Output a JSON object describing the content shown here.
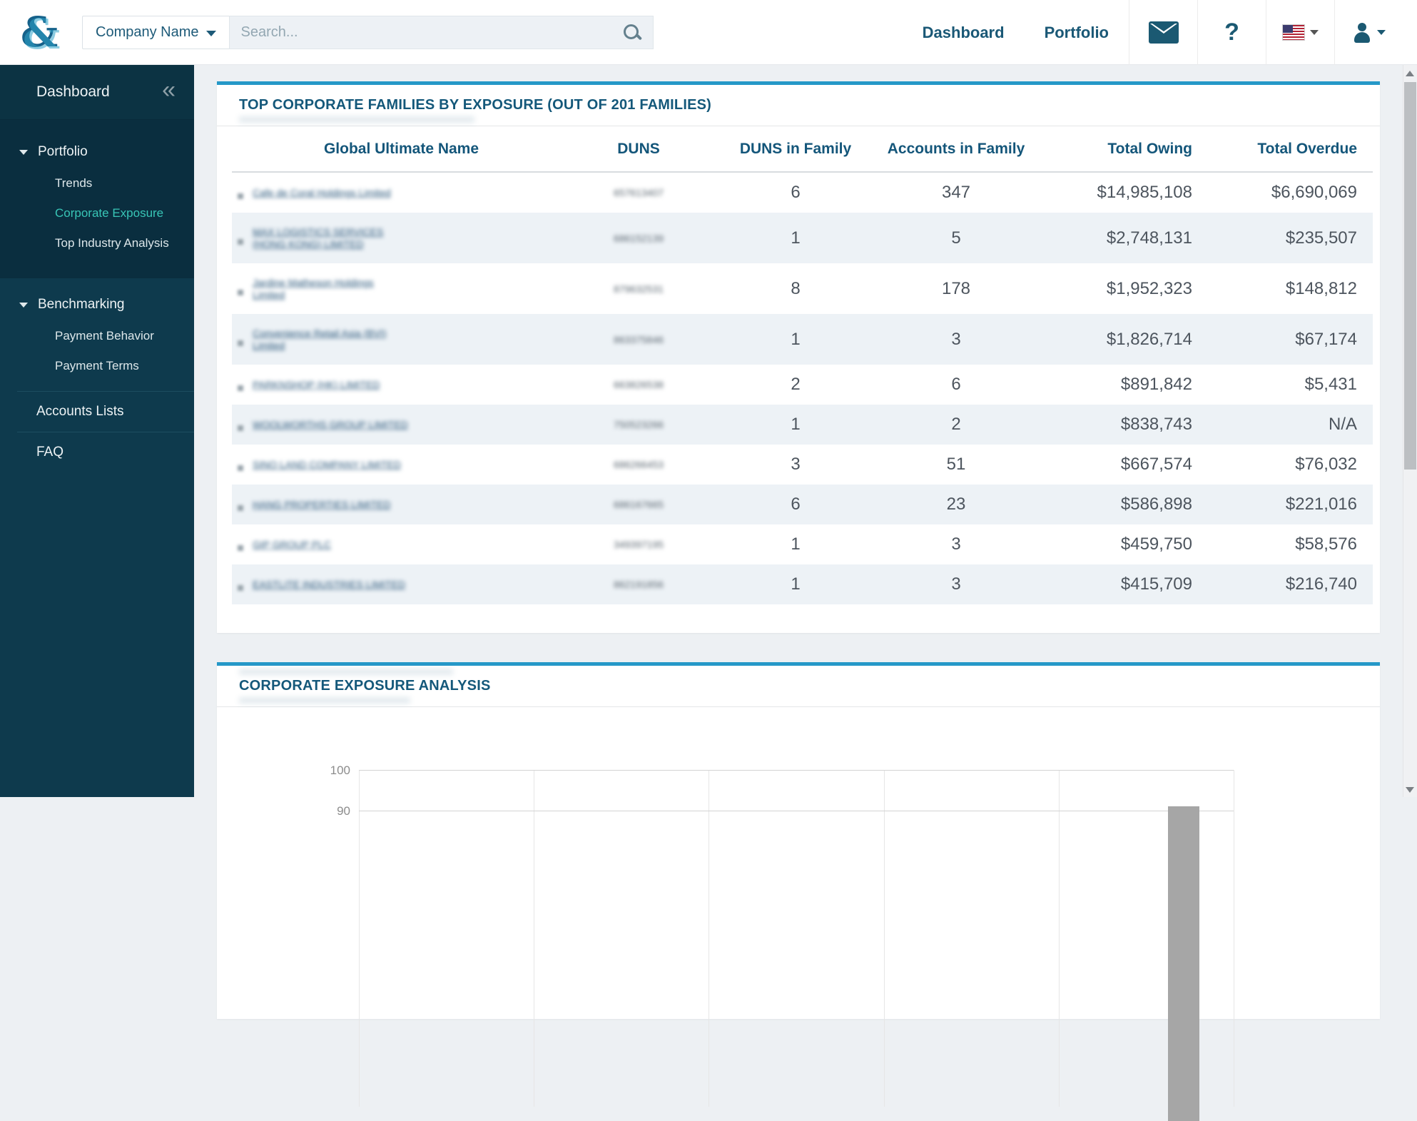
{
  "header": {
    "logo_glyph": "&",
    "search": {
      "category_label": "Company Name",
      "placeholder": "Search..."
    },
    "nav": [
      {
        "label": "Dashboard"
      },
      {
        "label": "Portfolio"
      }
    ],
    "icons": [
      "mail-icon",
      "help-icon",
      "us-flag-language-icon",
      "user-account-icon"
    ]
  },
  "sidebar": {
    "dashboard_label": "Dashboard",
    "collapse_glyph": "«",
    "portfolio": {
      "label": "Portfolio",
      "items": [
        {
          "label": "Trends",
          "active": false
        },
        {
          "label": "Corporate Exposure",
          "active": true
        },
        {
          "label": "Top Industry Analysis",
          "active": false
        }
      ]
    },
    "benchmarking": {
      "label": "Benchmarking",
      "items": [
        {
          "label": "Payment Behavior",
          "active": false
        },
        {
          "label": "Payment Terms",
          "active": false
        }
      ]
    },
    "accounts_lists_label": "Accounts Lists",
    "faq_label": "FAQ"
  },
  "card1": {
    "title": "TOP CORPORATE FAMILIES BY EXPOSURE (OUT OF 201 FAMILIES)",
    "columns": [
      "Global Ultimate Name",
      "DUNS",
      "DUNS in Family",
      "Accounts in Family",
      "Total Owing",
      "Total Overdue"
    ],
    "names_redacted": true,
    "duns_redacted": true,
    "rows": [
      {
        "name": "Cafe de Coral Holdings Limited",
        "duns": "657613407",
        "duns_in_family": "6",
        "accounts_in_family": "347",
        "total_owing": "$14,985,108",
        "total_overdue": "$6,690,069"
      },
      {
        "name": "MAX LOGISTICS SERVICES\n(HONG KONG) LIMITED",
        "duns": "686152139",
        "duns_in_family": "1",
        "accounts_in_family": "5",
        "total_owing": "$2,748,131",
        "total_overdue": "$235,507"
      },
      {
        "name": "Jardine Matheson Holdings\nLimited",
        "duns": "879632531",
        "duns_in_family": "8",
        "accounts_in_family": "178",
        "total_owing": "$1,952,323",
        "total_overdue": "$148,812"
      },
      {
        "name": "Convenience Retail Asia (BVI)\nLimited",
        "duns": "863375846",
        "duns_in_family": "1",
        "accounts_in_family": "3",
        "total_owing": "$1,826,714",
        "total_overdue": "$67,174"
      },
      {
        "name": "PARKNSHOP (HK) LIMITED",
        "duns": "663826538",
        "duns_in_family": "2",
        "accounts_in_family": "6",
        "total_owing": "$891,842",
        "total_overdue": "$5,431"
      },
      {
        "name": "WOOLWORTHS GROUP LIMITED",
        "duns": "750523266",
        "duns_in_family": "1",
        "accounts_in_family": "2",
        "total_owing": "$838,743",
        "total_overdue": "N/A"
      },
      {
        "name": "SINO LAND COMPANY LIMITED",
        "duns": "686266453",
        "duns_in_family": "3",
        "accounts_in_family": "51",
        "total_owing": "$667,574",
        "total_overdue": "$76,032"
      },
      {
        "name": "HANG PROPERTIES LIMITED",
        "duns": "686167665",
        "duns_in_family": "6",
        "accounts_in_family": "23",
        "total_owing": "$586,898",
        "total_overdue": "$221,016"
      },
      {
        "name": "GIP GROUP PLC",
        "duns": "349397195",
        "duns_in_family": "1",
        "accounts_in_family": "3",
        "total_owing": "$459,750",
        "total_overdue": "$58,576"
      },
      {
        "name": "EASTLITE INDUSTRIES LIMITED",
        "duns": "862191856",
        "duns_in_family": "1",
        "accounts_in_family": "3",
        "total_owing": "$415,709",
        "total_overdue": "$216,740"
      }
    ]
  },
  "card2": {
    "title": "CORPORATE EXPOSURE ANALYSIS"
  },
  "chart_data": {
    "type": "bar",
    "title": "CORPORATE EXPOSURE ANALYSIS",
    "xlabel": "",
    "ylabel": "",
    "visible_y_ticks": [
      100,
      90
    ],
    "ylim_visible_top": 100,
    "grid": true,
    "vertical_grid_columns": 5,
    "bars_visible": [
      {
        "position_fraction": 0.943,
        "value": 91,
        "color": "#a6a6a6"
      }
    ],
    "note_visible_portion": "chart cut off by viewport bottom; only ticks 100 and 90 and top of one gray bar visible"
  },
  "scrollbar": {
    "present": true
  },
  "colors": {
    "accent_blue": "#2598c8",
    "teal_text": "#14587a",
    "sidebar_bg": "#0e3a4d",
    "sidebar_section_bg": "#0a2e3f",
    "active_item": "#38c5b6",
    "alt_row": "#edf2f6",
    "bar_gray": "#a6a6a6"
  }
}
